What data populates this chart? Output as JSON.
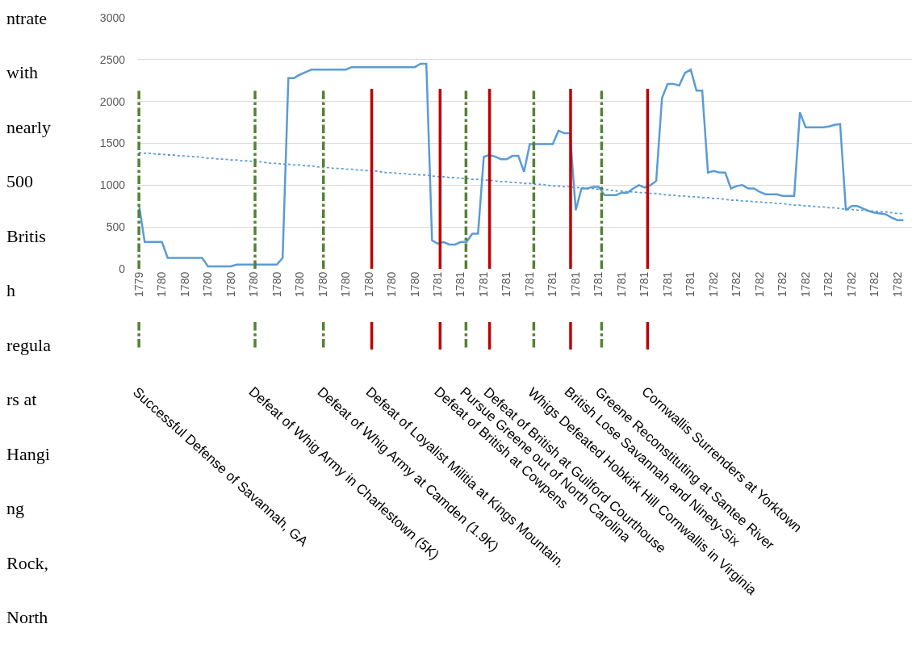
{
  "chart_data": {
    "type": "line",
    "categories": [
      "1779",
      null,
      null,
      null,
      "1780",
      null,
      null,
      null,
      "1780",
      null,
      null,
      null,
      "1780",
      null,
      null,
      null,
      "1780",
      null,
      null,
      null,
      "1780",
      null,
      null,
      null,
      "1780",
      null,
      null,
      null,
      "1780",
      null,
      null,
      null,
      "1780",
      null,
      null,
      null,
      "1780",
      null,
      null,
      null,
      "1780",
      null,
      null,
      null,
      "1780",
      null,
      null,
      null,
      "1780",
      null,
      null,
      null,
      "1781",
      null,
      null,
      null,
      "1781",
      null,
      null,
      null,
      "1781",
      null,
      null,
      null,
      "1781",
      null,
      null,
      null,
      "1781",
      null,
      null,
      null,
      "1781",
      null,
      null,
      null,
      "1781",
      null,
      null,
      null,
      "1781",
      null,
      null,
      null,
      "1781",
      null,
      null,
      null,
      "1781",
      null,
      null,
      null,
      "1781",
      null,
      null,
      null,
      "1781",
      null,
      null,
      null,
      "1782",
      null,
      null,
      null,
      "1782",
      null,
      null,
      null,
      "1782",
      null,
      null,
      null,
      "1782",
      null,
      null,
      null,
      "1782",
      null,
      null,
      null,
      "1782",
      null,
      null,
      null,
      "1782",
      null,
      null,
      null,
      "1782",
      null,
      null,
      null,
      "1782",
      null
    ],
    "ylim": [
      0,
      3000
    ],
    "yticks": [
      0,
      500,
      1000,
      1500,
      2000,
      2500,
      3000
    ],
    "grid": "y",
    "series": [
      {
        "color": "#5b9bd5",
        "line_style": "solid",
        "values": [
          770,
          320,
          320,
          320,
          320,
          130,
          130,
          130,
          130,
          130,
          130,
          130,
          30,
          30,
          30,
          30,
          30,
          50,
          50,
          50,
          50,
          50,
          50,
          50,
          50,
          130,
          2280,
          2280,
          2320,
          2350,
          2380,
          2380,
          2380,
          2380,
          2380,
          2380,
          2380,
          2410,
          2410,
          2410,
          2410,
          2410,
          2410,
          2410,
          2410,
          2410,
          2410,
          2410,
          2410,
          2450,
          2450,
          340,
          300,
          320,
          290,
          290,
          320,
          320,
          420,
          420,
          1340,
          1360,
          1340,
          1310,
          1310,
          1350,
          1350,
          1160,
          1490,
          1490,
          1490,
          1490,
          1490,
          1650,
          1620,
          1620,
          700,
          960,
          960,
          980,
          980,
          880,
          880,
          880,
          910,
          910,
          960,
          1000,
          970,
          1000,
          1050,
          2040,
          2210,
          2210,
          2190,
          2340,
          2380,
          2130,
          2130,
          1150,
          1170,
          1150,
          1150,
          960,
          990,
          1000,
          960,
          960,
          920,
          890,
          890,
          890,
          870,
          870,
          870,
          1870,
          1690,
          1690,
          1690,
          1690,
          1700,
          1720,
          1730,
          700,
          750,
          750,
          720,
          690,
          670,
          660,
          650,
          610,
          580,
          580
        ]
      },
      {
        "color": "#5b9bd5",
        "line_style": "dotted",
        "values": [
          1390,
          1380,
          1380,
          1370,
          1370,
          1360,
          1360,
          1350,
          1350,
          1340,
          1340,
          1330,
          1320,
          1320,
          1310,
          1310,
          1300,
          1300,
          1290,
          1290,
          1280,
          1280,
          1270,
          1260,
          1260,
          1250,
          1250,
          1240,
          1240,
          1230,
          1230,
          1220,
          1210,
          1210,
          1200,
          1200,
          1190,
          1190,
          1180,
          1180,
          1170,
          1170,
          1160,
          1150,
          1150,
          1140,
          1140,
          1130,
          1130,
          1120,
          1120,
          1110,
          1100,
          1100,
          1090,
          1090,
          1080,
          1080,
          1070,
          1070,
          1060,
          1060,
          1050,
          1040,
          1040,
          1030,
          1030,
          1020,
          1020,
          1010,
          1010,
          1000,
          990,
          990,
          980,
          980,
          970,
          970,
          960,
          960,
          950,
          950,
          940,
          930,
          930,
          920,
          920,
          910,
          910,
          900,
          900,
          890,
          880,
          880,
          870,
          870,
          860,
          860,
          850,
          850,
          840,
          840,
          830,
          820,
          820,
          810,
          810,
          800,
          800,
          790,
          790,
          780,
          780,
          770,
          760,
          760,
          750,
          750,
          740,
          740,
          730,
          730,
          720,
          710,
          710,
          700,
          700,
          690,
          690,
          680,
          680,
          670,
          660,
          660
        ]
      }
    ],
    "ref_lines": [
      {
        "axis": "x",
        "label": "Successful Defense of Savannah, GA",
        "color": "#548235",
        "line_style": "dashed"
      },
      {
        "axis": "x",
        "label": "Defeat of Whig Army in Charlestown (5K)",
        "color": "#548235",
        "line_style": "dashed"
      },
      {
        "axis": "x",
        "label": "Defeat of Whig Army at Camden (1.9K)",
        "color": "#548235",
        "line_style": "dashed"
      },
      {
        "axis": "x",
        "label": "Defeat of Loyalist Militia at Kings Mountain.",
        "color": "#c00000",
        "line_style": "solid"
      },
      {
        "axis": "x",
        "label": "Defeat of British at Cowpens",
        "color": "#c00000",
        "line_style": "solid"
      },
      {
        "axis": "x",
        "label": "Pursue Greene out of North Carolina",
        "color": "#548235",
        "line_style": "dashed"
      },
      {
        "axis": "x",
        "label": "Defeat of British at Guilford Courthouse",
        "color": "#c00000",
        "line_style": "solid"
      },
      {
        "axis": "x",
        "label": "Whigs Defeated Hobkirk Hill Cornwallis in Virginia",
        "color": "#548235",
        "line_style": "dashed"
      },
      {
        "axis": "x",
        "label": "British Lose Savannah and Ninety-Six",
        "color": "#c00000",
        "line_style": "solid"
      },
      {
        "axis": "x",
        "label": "Greene Reconstituting at Santee River",
        "color": "#548235",
        "line_style": "dashed"
      },
      {
        "axis": "x",
        "label": "Cornwallis Surrenders at Yorktown",
        "color": "#c00000",
        "line_style": "solid"
      }
    ],
    "annotations": [
      "ntrate",
      "with",
      "nearly",
      "500",
      "Britis",
      "h",
      "regula",
      "rs at",
      "Hangi",
      "ng",
      "Rock,",
      "North"
    ]
  }
}
